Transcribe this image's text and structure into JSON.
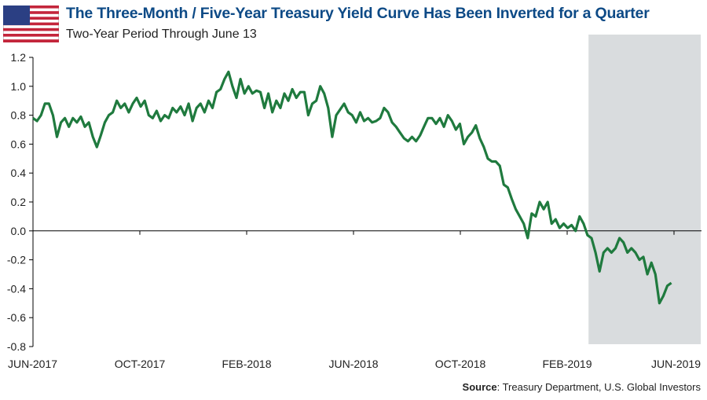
{
  "header": {
    "title": "The Three-Month / Five-Year Treasury Yield Curve Has Been Inverted for a Quarter",
    "subtitle": "Two-Year Period Through June 13"
  },
  "source": {
    "label": "Source",
    "text": ": Treasury Department, U.S. Global Investors"
  },
  "colors": {
    "line": "#1f7a3e",
    "shade": "#d9dcde",
    "title": "#0d4a86"
  },
  "chart_data": {
    "type": "line",
    "title": "The Three-Month / Five-Year Treasury Yield Curve Has Been Inverted for a Quarter",
    "xlabel": "",
    "ylabel": "",
    "ylim": [
      -0.8,
      1.2
    ],
    "yticks": [
      "1.2",
      "1.0",
      "0.8",
      "0.6",
      "0.4",
      "0.2",
      "0.0",
      "-0.2",
      "-0.4",
      "-0.6",
      "-0.8"
    ],
    "ytick_values": [
      1.2,
      1.0,
      0.8,
      0.6,
      0.4,
      0.2,
      0.0,
      -0.2,
      -0.4,
      -0.6,
      -0.8
    ],
    "xticks": [
      "JUN-2017",
      "OCT-2017",
      "FEB-2018",
      "JUN-2018",
      "OCT-2018",
      "FEB-2019",
      "JUN-2019"
    ],
    "xlim_months": [
      0,
      24
    ],
    "shaded_region_months": [
      20.8,
      25
    ],
    "series": [
      {
        "name": "3M/5Y spread",
        "x_range_months": [
          0,
          23.9
        ],
        "values": [
          0.78,
          0.76,
          0.8,
          0.88,
          0.88,
          0.8,
          0.65,
          0.75,
          0.78,
          0.72,
          0.78,
          0.75,
          0.79,
          0.72,
          0.75,
          0.65,
          0.58,
          0.66,
          0.75,
          0.8,
          0.82,
          0.9,
          0.85,
          0.88,
          0.82,
          0.88,
          0.92,
          0.86,
          0.9,
          0.8,
          0.78,
          0.83,
          0.76,
          0.8,
          0.78,
          0.85,
          0.82,
          0.86,
          0.8,
          0.88,
          0.76,
          0.85,
          0.88,
          0.82,
          0.9,
          0.85,
          0.96,
          0.98,
          1.05,
          1.1,
          1.0,
          0.92,
          1.05,
          0.95,
          1.0,
          0.95,
          0.97,
          0.96,
          0.85,
          0.95,
          0.82,
          0.9,
          0.85,
          0.95,
          0.9,
          0.98,
          0.92,
          0.96,
          0.96,
          0.8,
          0.88,
          0.9,
          1.0,
          0.95,
          0.85,
          0.65,
          0.8,
          0.84,
          0.88,
          0.82,
          0.8,
          0.75,
          0.82,
          0.76,
          0.78,
          0.75,
          0.76,
          0.78,
          0.85,
          0.82,
          0.75,
          0.72,
          0.68,
          0.64,
          0.62,
          0.65,
          0.62,
          0.66,
          0.72,
          0.78,
          0.78,
          0.74,
          0.78,
          0.72,
          0.8,
          0.76,
          0.7,
          0.74,
          0.6,
          0.65,
          0.68,
          0.73,
          0.64,
          0.58,
          0.5,
          0.48,
          0.48,
          0.45,
          0.32,
          0.3,
          0.22,
          0.15,
          0.1,
          0.05,
          -0.05,
          0.12,
          0.1,
          0.2,
          0.15,
          0.2,
          0.05,
          0.08,
          0.02,
          0.05,
          0.02,
          0.04,
          0.0,
          0.1,
          0.05,
          -0.03,
          -0.05,
          -0.15,
          -0.28,
          -0.15,
          -0.12,
          -0.15,
          -0.12,
          -0.05,
          -0.08,
          -0.15,
          -0.12,
          -0.15,
          -0.2,
          -0.18,
          -0.3,
          -0.22,
          -0.3,
          -0.5,
          -0.45,
          -0.38,
          -0.36
        ]
      }
    ]
  }
}
